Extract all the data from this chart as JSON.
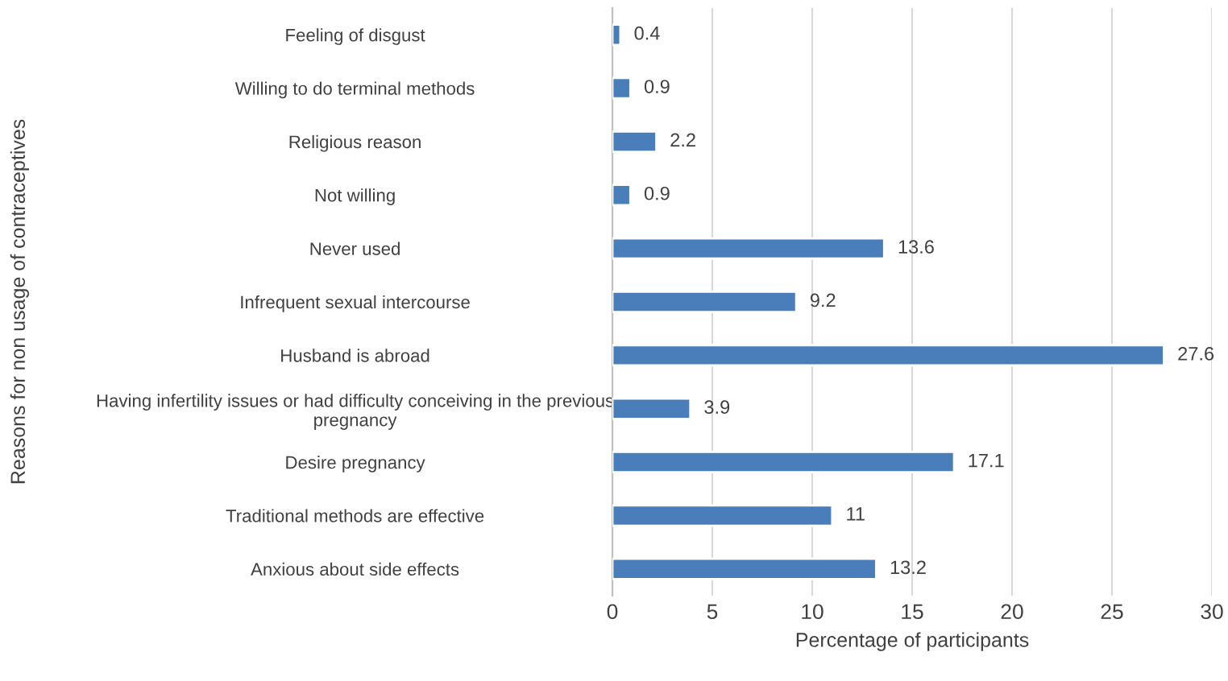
{
  "chart_data": {
    "type": "bar",
    "orientation": "horizontal",
    "categories": [
      "Feeling of disgust",
      "Willing to do terminal methods",
      "Religious reason",
      "Not willing",
      "Never used",
      "Infrequent sexual intercourse",
      "Husband is abroad",
      "Having infertility issues or had difficulty conceiving in the previous\npregnancy",
      "Desire pregnancy",
      "Traditional methods are effective",
      "Anxious about side effects"
    ],
    "values": [
      0.4,
      0.9,
      2.2,
      0.9,
      13.6,
      9.2,
      27.6,
      3.9,
      17.1,
      11,
      13.2
    ],
    "color": "#4a7ebb",
    "xlim": [
      0,
      30
    ],
    "xticks": [
      0,
      5,
      10,
      15,
      20,
      25,
      30
    ],
    "xlabel": "Percentage of participants",
    "ylabel": "Reasons for non usage of contraceptives",
    "grid": "x",
    "data_labels": true
  }
}
